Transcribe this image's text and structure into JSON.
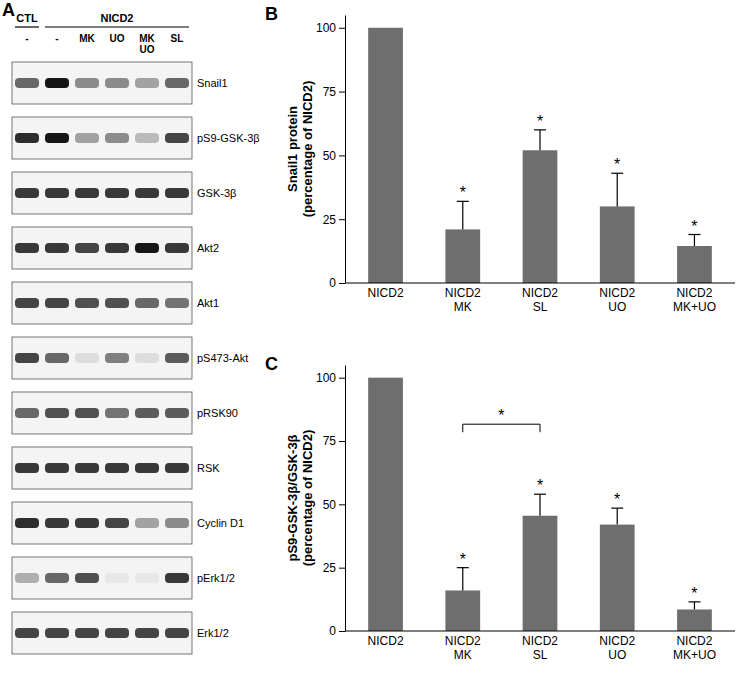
{
  "blot": {
    "panel_label": "A",
    "groups": [
      {
        "label": "CTL",
        "lanes": 1
      },
      {
        "label": "NICD2",
        "lanes": 5
      }
    ],
    "lanes": [
      "-",
      "-",
      "MK",
      "UO",
      "MK UO",
      "SL"
    ],
    "rows": [
      {
        "label": "Snail1",
        "bands": [
          0.6,
          0.95,
          0.45,
          0.45,
          0.35,
          0.6
        ]
      },
      {
        "label": "pS9-GSK-3β",
        "bands": [
          0.85,
          0.95,
          0.35,
          0.45,
          0.25,
          0.75
        ]
      },
      {
        "label": "GSK-3β",
        "bands": [
          0.8,
          0.8,
          0.8,
          0.8,
          0.8,
          0.8
        ]
      },
      {
        "label": "Akt2",
        "bands": [
          0.8,
          0.8,
          0.75,
          0.8,
          0.95,
          0.8
        ]
      },
      {
        "label": "Akt1",
        "bands": [
          0.75,
          0.75,
          0.7,
          0.7,
          0.6,
          0.55
        ]
      },
      {
        "label": "pS473-Akt",
        "bands": [
          0.75,
          0.6,
          0.1,
          0.5,
          0.1,
          0.65
        ]
      },
      {
        "label": "pRSK90",
        "bands": [
          0.6,
          0.7,
          0.7,
          0.55,
          0.65,
          0.65
        ]
      },
      {
        "label": "RSK",
        "bands": [
          0.8,
          0.8,
          0.8,
          0.8,
          0.8,
          0.8
        ]
      },
      {
        "label": "Cyclin D1",
        "bands": [
          0.85,
          0.8,
          0.8,
          0.75,
          0.35,
          0.45
        ]
      },
      {
        "label": "pErk1/2",
        "bands": [
          0.3,
          0.6,
          0.7,
          0.05,
          0.05,
          0.8
        ]
      },
      {
        "label": "Erk1/2",
        "bands": [
          0.75,
          0.75,
          0.75,
          0.75,
          0.75,
          0.75
        ]
      }
    ]
  },
  "chart_data": [
    {
      "type": "bar",
      "annotations": [
        "B"
      ],
      "y_label": [
        "Snail1 protein",
        "(percentage of NICD2)"
      ],
      "categories": [
        "NICD2",
        "NICD2 MK",
        "NICD2 SL",
        "NICD2 UO",
        "NICD2 MK+UO"
      ],
      "values": [
        100,
        21,
        52,
        30,
        14.5
      ],
      "error": [
        0,
        11,
        8,
        13,
        4.5
      ],
      "significance": [
        null,
        "*",
        "*",
        "*",
        "*"
      ],
      "color": "#6e6e6e",
      "ylim": [
        0,
        105
      ],
      "yticks": [
        0,
        25,
        50,
        75,
        100
      ],
      "grid": false
    },
    {
      "type": "bar",
      "annotations": [
        "C"
      ],
      "y_label": [
        "pS9-GSK-3β/GSK-3β",
        "(percentage of NICD2)"
      ],
      "categories": [
        "NICD2",
        "NICD2 MK",
        "NICD2 SL",
        "NICD2 UO",
        "NICD2 MK+UO"
      ],
      "values": [
        100,
        16,
        45.5,
        42,
        8.5
      ],
      "error": [
        0,
        9,
        8.5,
        6.5,
        3
      ],
      "significance": [
        null,
        "*",
        "*",
        "*",
        "*"
      ],
      "brackets": [
        {
          "categories": [
            1,
            2
          ],
          "label": "*"
        }
      ],
      "color": "#6e6e6e",
      "ylim": [
        0,
        105
      ],
      "yticks": [
        0,
        25,
        50,
        75,
        100
      ],
      "grid": false
    }
  ]
}
